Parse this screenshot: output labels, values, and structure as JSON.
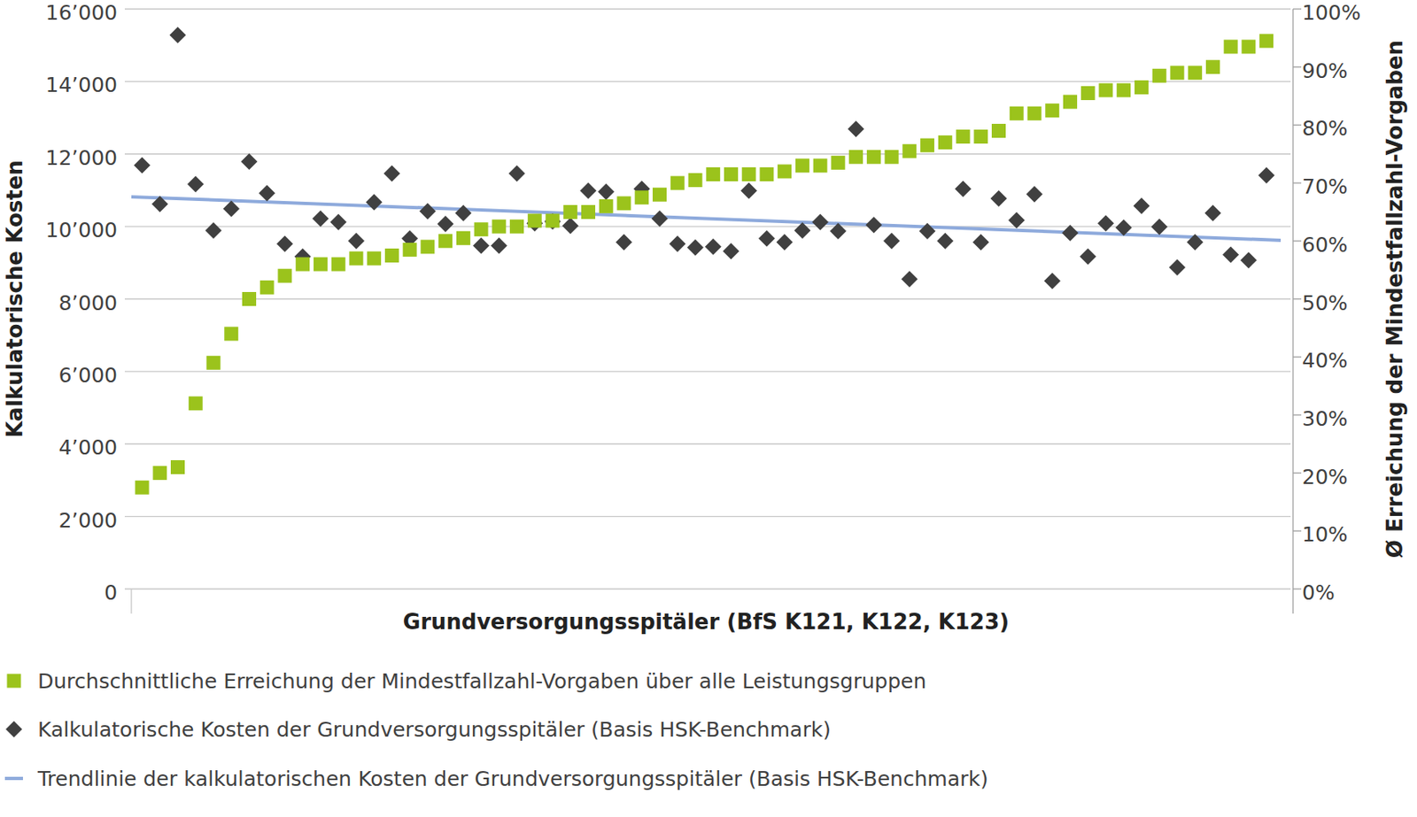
{
  "chart_data": {
    "type": "scatter",
    "x_label": "Grundversorgungsspitäler (BfS K121, K122, K123)",
    "y_label": "Kalkulatorische Kosten",
    "y2_label": "Ø Erreichung der Mindestfallzahl-Vorgaben",
    "x": [
      1,
      2,
      3,
      4,
      5,
      6,
      7,
      8,
      9,
      10,
      11,
      12,
      13,
      14,
      15,
      16,
      17,
      18,
      19,
      20,
      21,
      22,
      23,
      24,
      25,
      26,
      27,
      28,
      29,
      30,
      31,
      32,
      33,
      34,
      35,
      36,
      37,
      38,
      39,
      40,
      41,
      42,
      43,
      44,
      45,
      46,
      47,
      48,
      49,
      50,
      51,
      52,
      53,
      54,
      55,
      56,
      57,
      58,
      59,
      60,
      61,
      62,
      63,
      64
    ],
    "xlim": [
      0.4,
      64.8
    ],
    "ylim": [
      0,
      16000
    ],
    "yticks": [
      0,
      {
        "value": 2000,
        "label": "2’000"
      },
      {
        "value": 4000,
        "label": "4’000"
      },
      {
        "value": 6000,
        "label": "6’000"
      },
      {
        "value": 8000,
        "label": "8’000"
      },
      {
        "value": 10000,
        "label": "10’000"
      },
      {
        "value": 12000,
        "label": "12’000"
      },
      {
        "value": 14000,
        "label": "14’000"
      },
      {
        "value": 16000,
        "label": "16’000"
      }
    ],
    "y2lim": [
      0,
      100
    ],
    "y2ticks": [
      {
        "value": 0,
        "label": "0%"
      },
      {
        "value": 10,
        "label": "10%"
      },
      {
        "value": 20,
        "label": "20%"
      },
      {
        "value": 30,
        "label": "30%"
      },
      {
        "value": 40,
        "label": "40%"
      },
      {
        "value": 50,
        "label": "50%"
      },
      {
        "value": 60,
        "label": "60%"
      },
      {
        "value": 70,
        "label": "70%"
      },
      {
        "value": 80,
        "label": "80%"
      },
      {
        "value": 90,
        "label": "90%"
      },
      {
        "value": 100,
        "label": "100%"
      }
    ],
    "grid": true,
    "legend": "bottom",
    "tick_labels": "y",
    "series": [
      {
        "name": "Durchschnittliche Erreichung der Mindestfallzahl-Vorgaben über alle Leistungsgruppen",
        "color": "#9bc31c",
        "marker": "square",
        "type": "scatter",
        "axis": "y2",
        "values": [
          17.5,
          20,
          21,
          32,
          39,
          44,
          50,
          52,
          54,
          56,
          56,
          56,
          57,
          57,
          57.5,
          58.5,
          59,
          60,
          60.5,
          62,
          62.5,
          62.5,
          63.5,
          63.5,
          65,
          65,
          66,
          66.5,
          67.5,
          68,
          70,
          70.5,
          71.5,
          71.5,
          71.5,
          71.5,
          72,
          73,
          73,
          73.5,
          74.5,
          74.5,
          74.5,
          75.5,
          76.5,
          77,
          78,
          78,
          79,
          82,
          82,
          82.5,
          84,
          85.5,
          86,
          86,
          86.5,
          88.5,
          89,
          89,
          90,
          93.5,
          93.5,
          94.5
        ]
      },
      {
        "name": "Kalkulatorische Kosten der Grundversorgungsspitäler (Basis HSK-Benchmark)",
        "color": "#404040",
        "marker": "diamond",
        "type": "scatter",
        "values": [
          11690,
          10620,
          15280,
          11170,
          9890,
          10490,
          11790,
          10920,
          9520,
          9170,
          10220,
          10120,
          9600,
          10670,
          11460,
          9670,
          10420,
          10070,
          10370,
          9470,
          9470,
          11460,
          10090,
          10140,
          10020,
          10990,
          10960,
          9570,
          11040,
          10220,
          9520,
          9420,
          9440,
          9320,
          10990,
          9670,
          9570,
          9890,
          10120,
          9870,
          12690,
          10040,
          9600,
          8550,
          9870,
          9600,
          11040,
          9570,
          10770,
          10170,
          10890,
          8500,
          9820,
          9170,
          10090,
          9970,
          10570,
          9990,
          8870,
          9570,
          10370,
          9220,
          9070,
          11410
        ]
      },
      {
        "name": "Trendlinie der kalkulatorischen Kosten der Grundversorgungsspitäler (Basis HSK-Benchmark)",
        "color": "#8eaadc",
        "type": "line",
        "line_style": "solid",
        "x": [
          0.4,
          64.8
        ],
        "values": [
          10820,
          9620
        ]
      }
    ]
  }
}
